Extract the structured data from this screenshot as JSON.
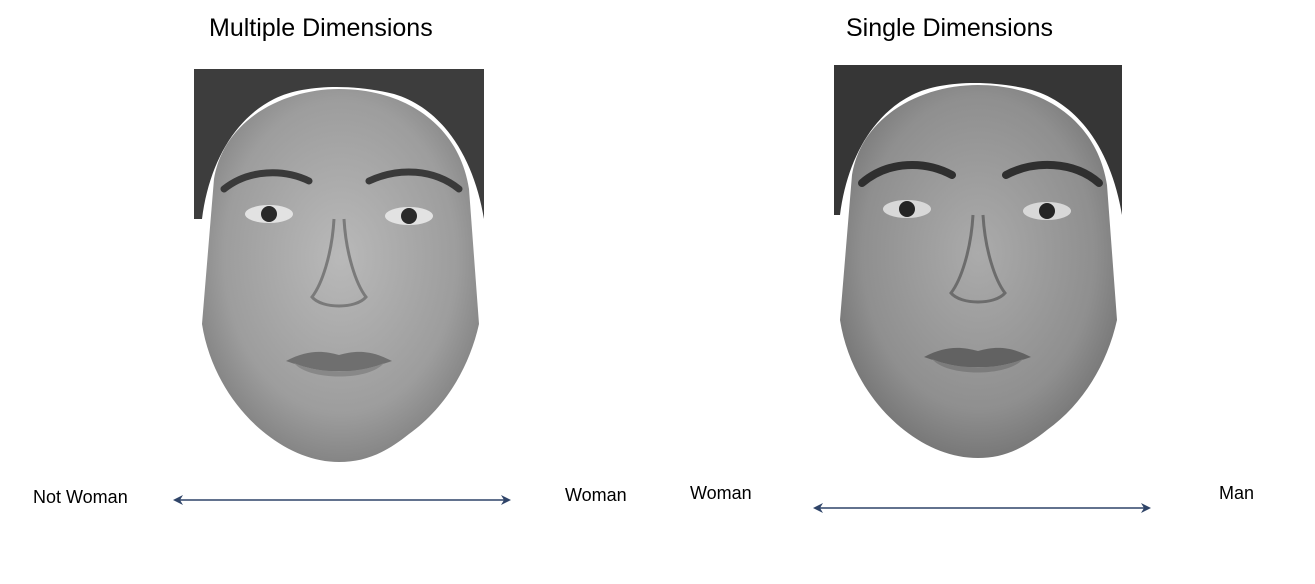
{
  "colors": {
    "arrow": "#2f4468",
    "text": "#000000",
    "background": "#ffffff"
  },
  "panels": [
    {
      "title": "Multiple Dimensions",
      "scale_start_label": "Not Woman",
      "scale_end_label": "Woman",
      "image": "grayscale-face-photo"
    },
    {
      "title": "Single Dimensions",
      "scale_start_label": "Woman",
      "scale_end_label": "Man",
      "image": "grayscale-face-photo"
    }
  ]
}
